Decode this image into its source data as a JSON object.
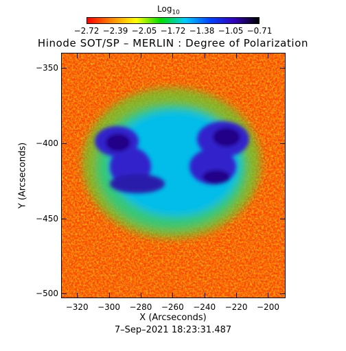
{
  "colorbar": {
    "label": "Log",
    "label_sub": "10",
    "tick_labels": [
      "−2.72",
      "−2.39",
      "−2.05",
      "−1.72",
      "−1.38",
      "−1.05",
      "−0.71"
    ],
    "colors": [
      "#ff0000",
      "#ff8800",
      "#ffff00",
      "#00dd00",
      "#00ccff",
      "#0044ff",
      "#3300bb",
      "#000000"
    ]
  },
  "title": "Hinode SOT/SP – MERLIN : Degree of Polarization",
  "axes": {
    "xlabel": "X (Arcseconds)",
    "ylabel": "Y (Arcseconds)",
    "x_ticks": [
      "−320",
      "−300",
      "−280",
      "−260",
      "−240",
      "−220",
      "−200"
    ],
    "y_ticks": [
      "−350",
      "−400",
      "−450",
      "−500"
    ]
  },
  "timestamp": "7–Sep–2021 18:23:31.487"
}
